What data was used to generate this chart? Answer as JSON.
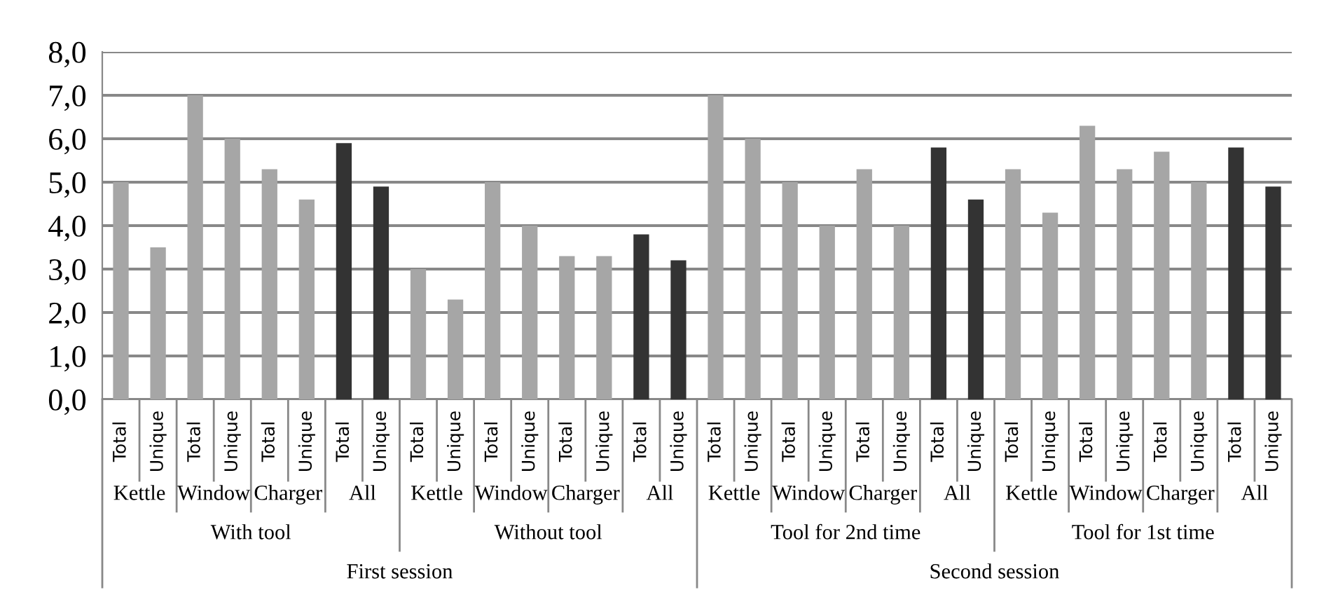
{
  "chart_data": {
    "type": "bar",
    "categories": [
      "Total",
      "Unique",
      "Total",
      "Unique",
      "Total",
      "Unique",
      "Total",
      "Unique",
      "Total",
      "Unique",
      "Total",
      "Unique",
      "Total",
      "Unique",
      "Total",
      "Unique",
      "Total",
      "Unique",
      "Total",
      "Unique",
      "Total",
      "Unique",
      "Total",
      "Unique",
      "Total",
      "Unique",
      "Total",
      "Unique",
      "Total",
      "Unique",
      "Total",
      "Unique"
    ],
    "values": [
      5.0,
      3.5,
      7.0,
      6.0,
      5.3,
      4.6,
      5.9,
      4.9,
      3.0,
      2.3,
      5.0,
      4.0,
      3.3,
      3.3,
      3.8,
      3.2,
      7.0,
      6.0,
      5.0,
      4.0,
      5.3,
      4.0,
      5.8,
      4.6,
      5.3,
      4.3,
      6.3,
      5.3,
      5.7,
      5.0,
      5.8,
      4.9
    ],
    "colors": [
      "#a6a6a6",
      "#a6a6a6",
      "#a6a6a6",
      "#a6a6a6",
      "#a6a6a6",
      "#a6a6a6",
      "#333333",
      "#333333",
      "#a6a6a6",
      "#a6a6a6",
      "#a6a6a6",
      "#a6a6a6",
      "#a6a6a6",
      "#a6a6a6",
      "#333333",
      "#333333",
      "#a6a6a6",
      "#a6a6a6",
      "#a6a6a6",
      "#a6a6a6",
      "#a6a6a6",
      "#a6a6a6",
      "#333333",
      "#333333",
      "#a6a6a6",
      "#a6a6a6",
      "#a6a6a6",
      "#a6a6a6",
      "#a6a6a6",
      "#a6a6a6",
      "#333333",
      "#333333"
    ],
    "annotations": [
      "Kettle",
      "Window",
      "Charger",
      "All",
      "Kettle",
      "Window",
      "Charger",
      "All",
      "Kettle",
      "Window",
      "Charger",
      "All",
      "Kettle",
      "Window",
      "Charger",
      "All",
      "With tool",
      "Without tool",
      "Tool for 2nd time",
      "Tool for 1st time",
      "First session",
      "Second session"
    ],
    "ylim": [
      0,
      8
    ],
    "yticks": [
      {
        "value": 0,
        "label": "0,0"
      },
      {
        "value": 1,
        "label": "1,0"
      },
      {
        "value": 2,
        "label": "2,0"
      },
      {
        "value": 3,
        "label": "3,0"
      },
      {
        "value": 4,
        "label": "4,0"
      },
      {
        "value": 5,
        "label": "5,0"
      },
      {
        "value": 6,
        "label": "6,0"
      },
      {
        "value": 7,
        "label": "7,0"
      },
      {
        "value": 8,
        "label": "8,0"
      }
    ],
    "grid": "y"
  }
}
